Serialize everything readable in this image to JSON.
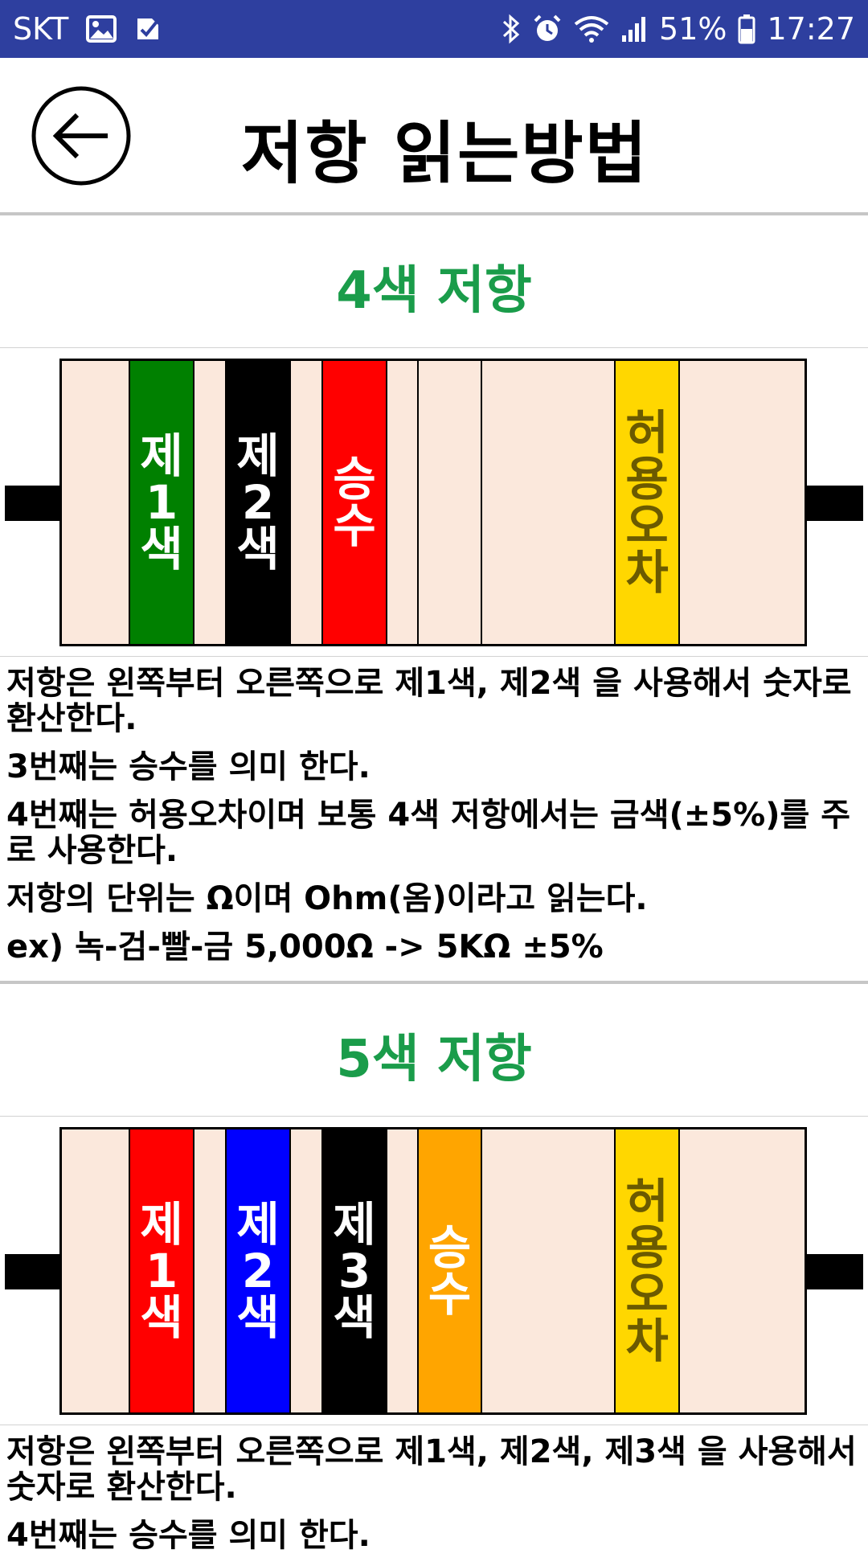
{
  "status_bar": {
    "carrier": "SKT",
    "battery": "51%",
    "time": "17:27",
    "icons_left": [
      "gallery-icon",
      "task-icon"
    ],
    "icons_right": [
      "bluetooth-icon",
      "alarm-icon",
      "wifi-icon",
      "signal-icon",
      "battery-icon"
    ],
    "bg_color": "#2e3f9f"
  },
  "header": {
    "title": "저항 읽는방법",
    "back_icon": "back-arrow-icon"
  },
  "section4": {
    "title": "4색 저항",
    "title_color": "#1a9c4a",
    "bands": [
      {
        "label": "제1색",
        "color": "#008000",
        "text_color": "#ffffff"
      },
      {
        "label": "제2색",
        "color": "#000000",
        "text_color": "#ffffff"
      },
      {
        "label": "승수",
        "color": "#ff0000",
        "text_color": "#ffffff"
      },
      {
        "label": "허용오차",
        "color": "#ffd700",
        "text_color": "#6b5a00"
      }
    ],
    "lines": [
      "저항은 왼쪽부터 오른쪽으로 제1색, 제2색 을 사용해서 숫자로 환산한다.",
      "3번째는 승수를 의미 한다.",
      "4번째는 허용오차이며 보통 4색 저항에서는 금색(±5%)를 주로 사용한다.",
      "저항의 단위는 Ω이며 Ohm(옴)이라고 읽는다.",
      "ex) 녹-검-빨-금 5,000Ω -> 5KΩ ±5%"
    ]
  },
  "section5": {
    "title": "5색 저항",
    "title_color": "#1a9c4a",
    "bands": [
      {
        "label": "제1색",
        "color": "#ff0000",
        "text_color": "#ffffff"
      },
      {
        "label": "제2색",
        "color": "#0000ff",
        "text_color": "#ffffff"
      },
      {
        "label": "제3색",
        "color": "#000000",
        "text_color": "#ffffff"
      },
      {
        "label": "승수",
        "color": "#ffa500",
        "text_color": "#ffffff"
      },
      {
        "label": "허용오차",
        "color": "#ffd700",
        "text_color": "#6b5a00"
      }
    ],
    "lines": [
      "저항은 왼쪽부터 오른쪽으로 제1색, 제2색, 제3색 을 사용해서 숫자로 환산한다.",
      "4번째는 승수를 의미 한다."
    ]
  },
  "resistor_body_color": "#fbe8dc"
}
